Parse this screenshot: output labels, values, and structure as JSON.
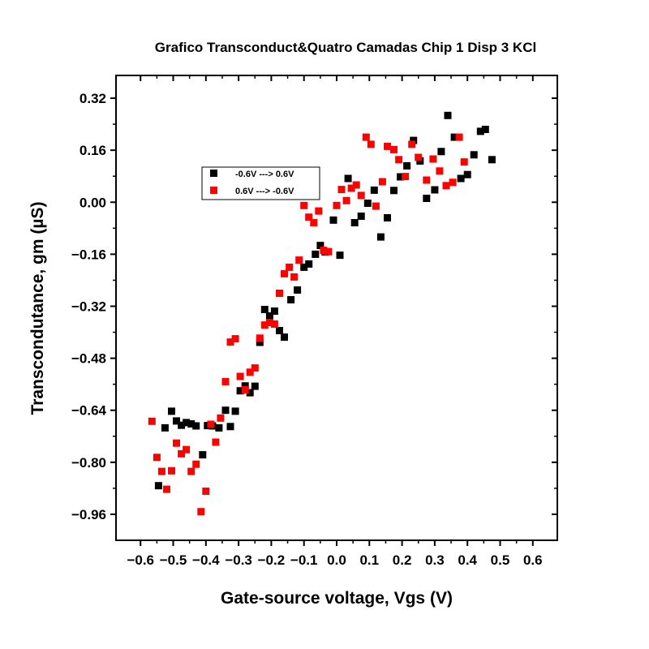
{
  "chart_data": {
    "type": "scatter",
    "title": "Grafico Transconduct&Quatro Camadas Chip 1 Disp 3 KCl",
    "xlabel": "Gate-source voltage, Vgs (V)",
    "ylabel": "Transcondutance, gm (µS)",
    "xlim": [
      -0.675,
      0.675
    ],
    "ylim": [
      -1.04,
      0.39
    ],
    "x_ticks": [
      -0.6,
      -0.5,
      -0.4,
      -0.3,
      -0.2,
      -0.1,
      0.0,
      0.1,
      0.2,
      0.3,
      0.4,
      0.5,
      0.6
    ],
    "x_tick_labels": [
      "−0.6",
      "−0.5",
      "−0.4",
      "−0.3",
      "−0.2",
      "−0.1",
      "0.0",
      "0.1",
      "0.2",
      "0.3",
      "0.4",
      "0.5",
      "0.6"
    ],
    "y_ticks": [
      0.32,
      0.16,
      0.0,
      -0.16,
      -0.32,
      -0.48,
      -0.64,
      -0.8,
      -0.96
    ],
    "y_tick_labels": [
      "0.32",
      "0.16",
      "0.00",
      "−0.16",
      "−0.32",
      "−0.48",
      "−0.64",
      "−0.80",
      "−0.96"
    ],
    "grid": false,
    "legend_position": "upper-left",
    "series": [
      {
        "name": "-0.6V ---> 0.6V",
        "color": "#000000",
        "marker": "square",
        "points": [
          [
            -0.545,
            -0.872
          ],
          [
            -0.525,
            -0.694
          ],
          [
            -0.505,
            -0.643
          ],
          [
            -0.49,
            -0.673
          ],
          [
            -0.475,
            -0.686
          ],
          [
            -0.46,
            -0.678
          ],
          [
            -0.445,
            -0.682
          ],
          [
            -0.43,
            -0.688
          ],
          [
            -0.41,
            -0.777
          ],
          [
            -0.395,
            -0.687
          ],
          [
            -0.38,
            -0.688
          ],
          [
            -0.36,
            -0.694
          ],
          [
            -0.34,
            -0.64
          ],
          [
            -0.325,
            -0.69
          ],
          [
            -0.31,
            -0.643
          ],
          [
            -0.295,
            -0.58
          ],
          [
            -0.28,
            -0.565
          ],
          [
            -0.265,
            -0.586
          ],
          [
            -0.25,
            -0.566
          ],
          [
            -0.235,
            -0.431
          ],
          [
            -0.22,
            -0.33
          ],
          [
            -0.205,
            -0.35
          ],
          [
            -0.19,
            -0.335
          ],
          [
            -0.175,
            -0.395
          ],
          [
            -0.16,
            -0.415
          ],
          [
            -0.14,
            -0.3
          ],
          [
            -0.12,
            -0.27
          ],
          [
            -0.1,
            -0.2
          ],
          [
            -0.085,
            -0.19
          ],
          [
            -0.065,
            -0.16
          ],
          [
            -0.05,
            -0.133
          ],
          [
            -0.035,
            -0.153
          ],
          [
            -0.01,
            -0.055
          ],
          [
            0.01,
            -0.163
          ],
          [
            0.035,
            0.073
          ],
          [
            0.055,
            -0.063
          ],
          [
            0.075,
            -0.043
          ],
          [
            0.095,
            -0.003
          ],
          [
            0.115,
            0.037
          ],
          [
            0.135,
            -0.107
          ],
          [
            0.155,
            -0.048
          ],
          [
            0.175,
            0.036
          ],
          [
            0.195,
            0.078
          ],
          [
            0.215,
            0.112
          ],
          [
            0.235,
            0.19
          ],
          [
            0.255,
            0.127
          ],
          [
            0.275,
            0.012
          ],
          [
            0.3,
            0.038
          ],
          [
            0.32,
            0.156
          ],
          [
            0.34,
            0.267
          ],
          [
            0.36,
            0.2
          ],
          [
            0.38,
            0.073
          ],
          [
            0.4,
            0.085
          ],
          [
            0.42,
            0.146
          ],
          [
            0.44,
            0.218
          ],
          [
            0.455,
            0.224
          ],
          [
            0.475,
            0.131
          ]
        ]
      },
      {
        "name": "0.6V ---> -0.6V",
        "color": "#ff0000",
        "marker": "square",
        "points": [
          [
            -0.565,
            -0.674
          ],
          [
            -0.55,
            -0.785
          ],
          [
            -0.535,
            -0.828
          ],
          [
            -0.52,
            -0.883
          ],
          [
            -0.505,
            -0.826
          ],
          [
            -0.49,
            -0.741
          ],
          [
            -0.475,
            -0.774
          ],
          [
            -0.46,
            -0.761
          ],
          [
            -0.445,
            -0.828
          ],
          [
            -0.43,
            -0.806
          ],
          [
            -0.415,
            -0.952
          ],
          [
            -0.4,
            -0.889
          ],
          [
            -0.385,
            -0.683
          ],
          [
            -0.37,
            -0.738
          ],
          [
            -0.355,
            -0.664
          ],
          [
            -0.34,
            -0.552
          ],
          [
            -0.325,
            -0.43
          ],
          [
            -0.31,
            -0.42
          ],
          [
            -0.295,
            -0.536
          ],
          [
            -0.28,
            -0.577
          ],
          [
            -0.265,
            -0.523
          ],
          [
            -0.25,
            -0.51
          ],
          [
            -0.235,
            -0.418
          ],
          [
            -0.22,
            -0.378
          ],
          [
            -0.205,
            -0.37
          ],
          [
            -0.19,
            -0.375
          ],
          [
            -0.175,
            -0.28
          ],
          [
            -0.16,
            -0.22
          ],
          [
            -0.145,
            -0.2
          ],
          [
            -0.13,
            -0.23
          ],
          [
            -0.115,
            -0.178
          ],
          [
            -0.1,
            -0.01
          ],
          [
            -0.085,
            -0.046
          ],
          [
            -0.07,
            -0.063
          ],
          [
            -0.055,
            -0.027
          ],
          [
            -0.04,
            -0.148
          ],
          [
            -0.025,
            -0.152
          ],
          [
            0.0,
            -0.01
          ],
          [
            0.015,
            0.039
          ],
          [
            0.03,
            0.005
          ],
          [
            0.045,
            0.043
          ],
          [
            0.06,
            0.053
          ],
          [
            0.075,
            0.021
          ],
          [
            0.09,
            0.2
          ],
          [
            0.105,
            0.178
          ],
          [
            0.12,
            -0.012
          ],
          [
            0.14,
            0.063
          ],
          [
            0.155,
            0.172
          ],
          [
            0.175,
            0.162
          ],
          [
            0.19,
            0.131
          ],
          [
            0.21,
            0.079
          ],
          [
            0.23,
            0.178
          ],
          [
            0.25,
            0.138
          ],
          [
            0.275,
            0.068
          ],
          [
            0.295,
            0.133
          ],
          [
            0.315,
            0.096
          ],
          [
            0.335,
            0.051
          ],
          [
            0.355,
            0.061
          ],
          [
            0.375,
            0.2
          ],
          [
            0.39,
            0.124
          ]
        ]
      }
    ]
  }
}
